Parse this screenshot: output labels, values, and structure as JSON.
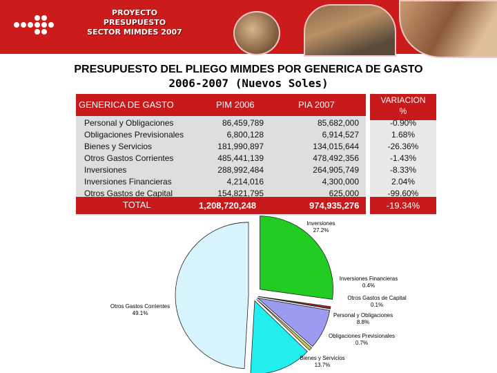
{
  "banner": {
    "project_lines": [
      "PROYECTO",
      "PRESUPUESTO",
      "SECTOR MIMDES 2007"
    ],
    "color": "#cc1b1b"
  },
  "title": {
    "line1": "PRESUPUESTO DEL PLIEGO MIMDES POR GENERICA DE GASTO",
    "line2": "2006-2007 (Nuevos Soles)"
  },
  "table": {
    "headers": {
      "generica": "GENERICA DE GASTO",
      "pim": "PIM 2006",
      "pia": "PIA 2007",
      "variacion": "VARIACION",
      "variacion_unit": "%"
    },
    "rows": [
      {
        "name": "Personal y Obligaciones",
        "pim": "86,459,789",
        "pia": "85,682,000",
        "var": "-0.90%"
      },
      {
        "name": "Obligaciones Previsionales",
        "pim": "6,800,128",
        "pia": "6,914,527",
        "var": "1.68%"
      },
      {
        "name": "Bienes y Servicios",
        "pim": "181,990,897",
        "pia": "134,015,644",
        "var": "-26.36%"
      },
      {
        "name": "Otros Gastos Corrientes",
        "pim": "485,441,139",
        "pia": "478,492,356",
        "var": "-1.43%"
      },
      {
        "name": "Inversiones",
        "pim": "288,992,484",
        "pia": "264,905,749",
        "var": "-8.33%"
      },
      {
        "name": "Inversiones Financieras",
        "pim": "4,214,016",
        "pia": "4,300,000",
        "var": "2.04%"
      },
      {
        "name": "Otros Gastos de Capital",
        "pim": "154,821,795",
        "pia": "625,000",
        "var": "-99.60%"
      }
    ],
    "total": {
      "name": "TOTAL",
      "pim": "1,208,720,248",
      "pia": "974,935,276",
      "var": "-19.34%"
    }
  },
  "chart_data": {
    "type": "pie",
    "slices": [
      {
        "name": "Inversiones",
        "value": 27.2,
        "label": "27.2%",
        "color": "#22cc22"
      },
      {
        "name": "Inversiones Financieras",
        "value": 0.4,
        "label": "0.4%",
        "color": "#cc2222"
      },
      {
        "name": "Otros Gastos de Capital",
        "value": 0.1,
        "label": "0.1%",
        "color": "#8a8a8a"
      },
      {
        "name": "Personal y Obligaciones",
        "value": 8.8,
        "label": "8.8%",
        "color": "#9b9bf0"
      },
      {
        "name": "Obligaciones Previsionales",
        "value": 0.7,
        "label": "0.7%",
        "color": "#c8c860"
      },
      {
        "name": "Bienes y Servicios",
        "value": 13.7,
        "label": "13.7%",
        "color": "#22eeee"
      },
      {
        "name": "Otros Gastos Corrientes",
        "value": 49.1,
        "label": "49.1%",
        "color": "#d8f4ff"
      }
    ]
  }
}
